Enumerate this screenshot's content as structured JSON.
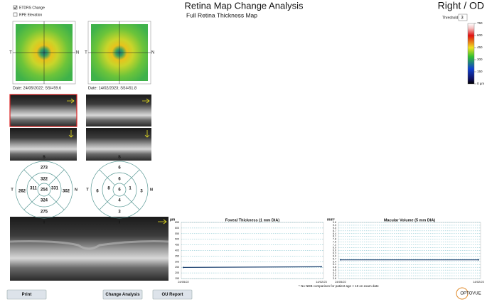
{
  "header": {
    "title": "Retina Map Change Analysis",
    "subtitle": "Full Retina Thickness Map",
    "eye": "Right / OD"
  },
  "checkboxes": [
    {
      "label": "ETDRS Change",
      "checked": true
    },
    {
      "label": "RPE Elevation",
      "checked": false
    }
  ],
  "threshold": {
    "label": "Threshold",
    "value": 3
  },
  "color_scale": {
    "ticks": [
      750,
      600,
      450,
      300,
      150,
      {
        "value": 0,
        "label": "0 µm"
      }
    ]
  },
  "maps": [
    {
      "left": "T",
      "right": "N",
      "date": "Date: 24/05/2022; SSI=59.6"
    },
    {
      "left": "T",
      "right": "N",
      "date": "Date: 14/02/2023; SSI=51.8"
    }
  ],
  "etdrs": [
    {
      "S": "S",
      "T": "T",
      "N": "N",
      "I": "I",
      "center": 254,
      "inner": {
        "superior": 322,
        "temporal": 311,
        "nasal": 331,
        "inferior": 324
      },
      "outer": {
        "superior": 273,
        "temporal": 262,
        "nasal": 302,
        "inferior": 275
      }
    },
    {
      "S": "S",
      "T": "T",
      "N": "N",
      "I": "I",
      "center": 6,
      "inner": {
        "superior": 6,
        "temporal": 8,
        "nasal": 1,
        "inferior": 4
      },
      "outer": {
        "superior": 6,
        "temporal": 6,
        "nasal": 3,
        "inferior": 3
      }
    }
  ],
  "chart_data": [
    {
      "type": "line",
      "title": "Foveal Thickness (1 mm DIA)",
      "y_label": "µm",
      "categories": [
        "24/05/22",
        "14/02/23"
      ],
      "values": [
        254,
        260
      ],
      "color": "#1a3f6e",
      "ylim": [
        155,
        655
      ],
      "yticks": [
        155,
        205,
        255,
        305,
        355,
        405,
        455,
        505,
        555,
        605,
        655
      ],
      "grid": true
    },
    {
      "type": "line",
      "title": "Macular Volume (5 mm DIA)",
      "y_label": "mm³",
      "categories": [
        "24/05/22",
        "14/02/23"
      ],
      "values": [
        5.6,
        5.6
      ],
      "color": "#1a3f6e",
      "ylim": [
        3.6,
        9.6
      ],
      "yticks": [
        3.6,
        3.9,
        4.2,
        4.5,
        4.8,
        5.1,
        5.4,
        5.7,
        {
          "value": 6,
          "label": "6.0"
        },
        6.3,
        6.6,
        6.9,
        7.2,
        7.5,
        7.8,
        8.1,
        8.4,
        8.7,
        {
          "value": 9,
          "label": "9.0"
        },
        9.3,
        9.6
      ],
      "grid": true
    }
  ],
  "footnote": "* No NDB comparison for patient age < 18 on exam date",
  "buttons": [
    "Print",
    "Change Analysis",
    "OU Report"
  ],
  "logo": "OPTOVUE"
}
